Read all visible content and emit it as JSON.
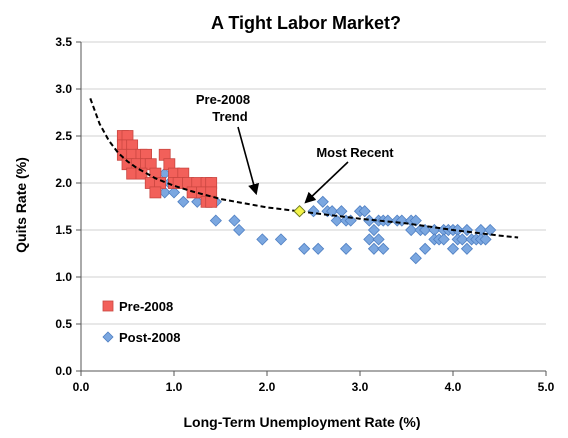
{
  "chart_data": {
    "type": "scatter",
    "title": "A Tight Labor Market?",
    "xlabel": "Long-Term Unemployment Rate (%)",
    "ylabel": "Quits Rate (%)",
    "xlim": [
      0,
      5
    ],
    "ylim": [
      0,
      3.5
    ],
    "x_ticks": [
      "0.0",
      "1.0",
      "2.0",
      "3.0",
      "4.0",
      "5.0"
    ],
    "y_ticks": [
      "0.0",
      "0.5",
      "1.0",
      "1.5",
      "2.0",
      "2.5",
      "3.0",
      "3.5"
    ],
    "grid": "horizontal",
    "legend_placement": "bottom-left",
    "colors": {
      "pre2008_fill": "#f2605a",
      "pre2008_stroke": "#c94640",
      "post2008_fill": "#7ba7e0",
      "post2008_stroke": "#4f7fc2",
      "recent_fill": "#f4f44a",
      "trend": "#000000",
      "grid": "#d0d0d0"
    },
    "series": [
      {
        "name": "Pre-2008",
        "marker": "square",
        "points": [
          [
            0.45,
            2.5
          ],
          [
            0.5,
            2.5
          ],
          [
            0.45,
            2.4
          ],
          [
            0.5,
            2.4
          ],
          [
            0.55,
            2.4
          ],
          [
            0.45,
            2.3
          ],
          [
            0.55,
            2.3
          ],
          [
            0.65,
            2.3
          ],
          [
            0.7,
            2.3
          ],
          [
            0.5,
            2.2
          ],
          [
            0.6,
            2.2
          ],
          [
            0.7,
            2.2
          ],
          [
            0.75,
            2.2
          ],
          [
            0.55,
            2.1
          ],
          [
            0.65,
            2.1
          ],
          [
            0.8,
            2.1
          ],
          [
            0.75,
            2.0
          ],
          [
            0.85,
            2.0
          ],
          [
            0.8,
            1.9
          ],
          [
            0.9,
            2.3
          ],
          [
            0.95,
            2.2
          ],
          [
            1.0,
            2.1
          ],
          [
            1.1,
            2.1
          ],
          [
            1.0,
            2.0
          ],
          [
            1.05,
            2.0
          ],
          [
            1.15,
            2.0
          ],
          [
            1.25,
            2.0
          ],
          [
            1.35,
            2.0
          ],
          [
            1.4,
            2.0
          ],
          [
            1.2,
            1.9
          ],
          [
            1.3,
            1.9
          ],
          [
            1.4,
            1.9
          ],
          [
            1.35,
            1.8
          ],
          [
            1.4,
            1.8
          ]
        ]
      },
      {
        "name": "Post-2008",
        "marker": "diamond",
        "points": [
          [
            0.9,
            2.1
          ],
          [
            0.95,
            2.0
          ],
          [
            0.9,
            1.9
          ],
          [
            1.0,
            1.9
          ],
          [
            1.1,
            1.8
          ],
          [
            1.25,
            1.8
          ],
          [
            1.45,
            1.8
          ],
          [
            1.45,
            1.6
          ],
          [
            1.65,
            1.6
          ],
          [
            1.7,
            1.5
          ],
          [
            1.95,
            1.4
          ],
          [
            2.15,
            1.4
          ],
          [
            2.4,
            1.3
          ],
          [
            2.55,
            1.3
          ],
          [
            2.85,
            1.3
          ],
          [
            2.5,
            1.7
          ],
          [
            2.6,
            1.8
          ],
          [
            2.65,
            1.7
          ],
          [
            2.7,
            1.7
          ],
          [
            2.75,
            1.6
          ],
          [
            2.8,
            1.7
          ],
          [
            2.85,
            1.6
          ],
          [
            2.9,
            1.6
          ],
          [
            3.0,
            1.7
          ],
          [
            3.05,
            1.7
          ],
          [
            3.1,
            1.6
          ],
          [
            3.15,
            1.5
          ],
          [
            3.2,
            1.6
          ],
          [
            3.25,
            1.6
          ],
          [
            3.3,
            1.6
          ],
          [
            3.4,
            1.6
          ],
          [
            3.45,
            1.6
          ],
          [
            3.55,
            1.6
          ],
          [
            3.6,
            1.6
          ],
          [
            3.1,
            1.4
          ],
          [
            3.15,
            1.3
          ],
          [
            3.2,
            1.4
          ],
          [
            3.25,
            1.3
          ],
          [
            3.55,
            1.5
          ],
          [
            3.65,
            1.5
          ],
          [
            3.7,
            1.5
          ],
          [
            3.8,
            1.5
          ],
          [
            3.9,
            1.5
          ],
          [
            3.95,
            1.5
          ],
          [
            4.0,
            1.5
          ],
          [
            4.05,
            1.5
          ],
          [
            4.15,
            1.5
          ],
          [
            4.3,
            1.5
          ],
          [
            4.4,
            1.5
          ],
          [
            3.6,
            1.2
          ],
          [
            3.7,
            1.3
          ],
          [
            3.8,
            1.4
          ],
          [
            3.85,
            1.4
          ],
          [
            3.9,
            1.4
          ],
          [
            4.0,
            1.3
          ],
          [
            4.05,
            1.4
          ],
          [
            4.1,
            1.4
          ],
          [
            4.15,
            1.3
          ],
          [
            4.2,
            1.4
          ],
          [
            4.25,
            1.4
          ],
          [
            4.3,
            1.4
          ],
          [
            4.35,
            1.4
          ]
        ]
      }
    ],
    "most_recent_point": [
      2.35,
      1.7
    ],
    "trend_curve": [
      [
        0.1,
        2.9
      ],
      [
        0.2,
        2.63
      ],
      [
        0.3,
        2.45
      ],
      [
        0.4,
        2.32
      ],
      [
        0.5,
        2.23
      ],
      [
        0.6,
        2.16
      ],
      [
        0.8,
        2.05
      ],
      [
        1.0,
        1.97
      ],
      [
        1.2,
        1.91
      ],
      [
        1.5,
        1.83
      ],
      [
        2.0,
        1.74
      ],
      [
        2.5,
        1.68
      ],
      [
        3.0,
        1.62
      ],
      [
        3.5,
        1.57
      ],
      [
        4.0,
        1.5
      ],
      [
        4.5,
        1.44
      ],
      [
        4.7,
        1.42
      ]
    ],
    "annotations": [
      {
        "lines": [
          "Pre-2008",
          "Trend"
        ]
      },
      {
        "lines": [
          "Most Recent"
        ]
      }
    ]
  }
}
